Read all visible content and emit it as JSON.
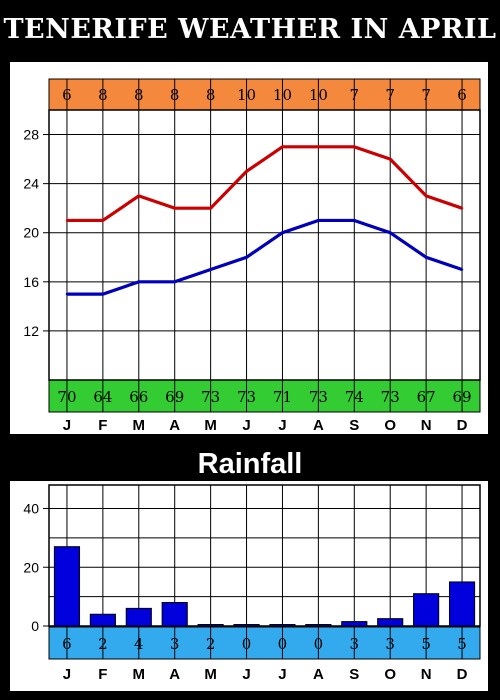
{
  "title": "TENERIFE WEATHER IN APRIL",
  "rainfall_title": "Rainfall",
  "colors": {
    "background": "#000000",
    "max_temp_line": "#cc0000",
    "min_temp_line": "#0000bb",
    "sun_band": "#f4893e",
    "humidity_band": "#33cc33",
    "rain_band": "#33aaee",
    "bars": "#0000dd"
  },
  "chart_data": [
    {
      "type": "line",
      "title": "",
      "categories": [
        "J",
        "F",
        "M",
        "A",
        "M",
        "J",
        "J",
        "A",
        "S",
        "O",
        "N",
        "D"
      ],
      "series": [
        {
          "values": [
            21,
            21,
            23,
            22,
            22,
            25,
            27,
            27,
            27,
            26,
            23,
            22
          ]
        },
        {
          "values": [
            15,
            15,
            16,
            16,
            17,
            18,
            20,
            21,
            21,
            20,
            18,
            17
          ]
        }
      ],
      "top_row": [
        "6",
        "8",
        "8",
        "8",
        "8",
        "10",
        "10",
        "10",
        "7",
        "7",
        "7",
        "6"
      ],
      "bottom_row": [
        "70",
        "64",
        "66",
        "69",
        "73",
        "73",
        "71",
        "73",
        "74",
        "73",
        "67",
        "69"
      ],
      "yticks": [
        12,
        16,
        20,
        24,
        28
      ],
      "ylim": [
        8,
        30
      ],
      "grid": true
    },
    {
      "type": "bar",
      "title": "Rainfall",
      "categories": [
        "J",
        "F",
        "M",
        "A",
        "M",
        "J",
        "J",
        "A",
        "S",
        "O",
        "N",
        "D"
      ],
      "values": [
        27,
        4,
        6,
        8,
        0.5,
        0.5,
        0.5,
        0.5,
        1.5,
        2.5,
        11,
        15
      ],
      "bottom_row": [
        "6",
        "2",
        "4",
        "3",
        "2",
        "0",
        "0",
        "0",
        "3",
        "3",
        "5",
        "5"
      ],
      "yticks": [
        0,
        20,
        40
      ],
      "ylim": [
        0,
        48
      ],
      "grid": true
    }
  ]
}
